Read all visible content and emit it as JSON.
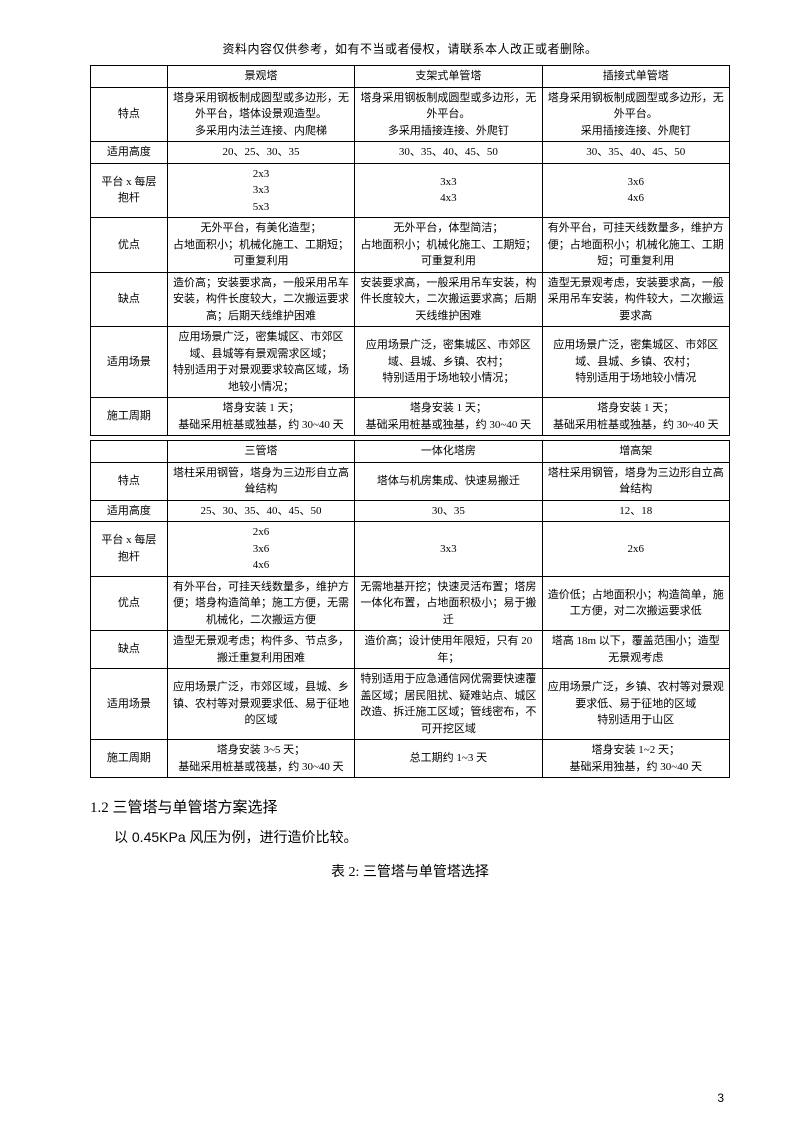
{
  "disclaimer": "资料内容仅供参考，如有不当或者侵权，请联系本人改正或者删除。",
  "tableA": {
    "headers": [
      "",
      "景观塔",
      "支架式单管塔",
      "插接式单管塔"
    ],
    "rows": {
      "特点": {
        "a": [
          "塔身采用钢板制成圆型或多边形，无外平台，塔体设景观造型。",
          "多采用内法兰连接、内爬梯"
        ],
        "b": [
          "塔身采用钢板制成圆型或多边形，无外平台。",
          "多采用插接连接、外爬钉"
        ],
        "c": [
          "塔身采用钢板制成圆型或多边形，无外平台。",
          "采用插接连接、外爬钉"
        ]
      },
      "适用高度": {
        "a": "20、25、30、35",
        "b": "30、35、40、45、50",
        "c": "30、35、40、45、50"
      },
      "平台x每层抱杆": {
        "label": [
          "平台 x 每层",
          "抱杆"
        ],
        "a": [
          "2x3",
          "3x3",
          "5x3"
        ],
        "b": [
          "3x3",
          "4x3"
        ],
        "c": [
          "3x6",
          "4x6"
        ]
      },
      "优点": {
        "a": [
          "无外平台，有美化造型；",
          "占地面积小；机械化施工、工期短；",
          "可重复利用"
        ],
        "b": [
          "无外平台，体型简洁；",
          "占地面积小；机械化施工、工期短；",
          "可重复利用"
        ],
        "c": [
          "有外平台，可挂天线数量多，维护方便；占地面积小；机械化施工、工期短；可重复利用"
        ]
      },
      "缺点": {
        "a": [
          "造价高；安装要求高，一般采用吊车安装，构件长度较大，二次搬运要求高；后期天线维护困难"
        ],
        "b": [
          "安装要求高，一般采用吊车安装，构件长度较大，二次搬运要求高；后期天线维护困难"
        ],
        "c": [
          "造型无景观考虑，安装要求高，一般采用吊车安装，构件较大，二次搬运要求高"
        ]
      },
      "适用场景": {
        "a": [
          "应用场景广泛，密集城区、市郊区域、县城等有景观需求区域；",
          "特别适用于对景观要求较高区域，场地较小情况；"
        ],
        "b": [
          "应用场景广泛，密集城区、市郊区域、县城、乡镇、农村；",
          "特别适用于场地较小情况；"
        ],
        "c": [
          "应用场景广泛，密集城区、市郊区域、县城、乡镇、农村；",
          "特别适用于场地较小情况"
        ]
      },
      "施工周期": {
        "a": [
          "塔身安装 1 天；",
          "基础采用桩基或独基，约 30~40 天"
        ],
        "b": [
          "塔身安装 1 天；",
          "基础采用桩基或独基，约 30~40 天"
        ],
        "c": [
          "塔身安装 1 天；",
          "基础采用桩基或独基，约 30~40 天"
        ]
      }
    }
  },
  "tableB": {
    "headers": [
      "",
      "三管塔",
      "一体化塔房",
      "增高架"
    ],
    "rows": {
      "特点": {
        "a": [
          "塔柱采用钢管，塔身为三边形自立高耸结构"
        ],
        "b": [
          "塔体与机房集成、快速易搬迁"
        ],
        "c": [
          "塔柱采用钢管，塔身为三边形自立高耸结构"
        ]
      },
      "适用高度": {
        "a": "25、30、35、40、45、50",
        "b": "30、35",
        "c": "12、18"
      },
      "平台x每层抱杆": {
        "label": [
          "平台 x 每层",
          "抱杆"
        ],
        "a": [
          "2x6",
          "3x6",
          "4x6"
        ],
        "b": [
          "3x3"
        ],
        "c": [
          "2x6"
        ]
      },
      "优点": {
        "a": [
          "有外平台，可挂天线数量多，维护方便；塔身构造简单；施工方便，无需机械化，二次搬运方便"
        ],
        "b": [
          "无需地基开挖；快速灵活布置；塔房一体化布置，占地面积极小；易于搬迁"
        ],
        "c": [
          "造价低；占地面积小；构造简单，施工方便，对二次搬运要求低"
        ]
      },
      "缺点": {
        "a": [
          "造型无景观考虑；构件多、节点多，搬迁重复利用困难"
        ],
        "b": [
          "造价高；设计使用年限短，只有 20 年；"
        ],
        "c": [
          "塔高 18m 以下，覆盖范围小；造型无景观考虑"
        ]
      },
      "适用场景": {
        "a": [
          "应用场景广泛，市郊区域，县城、乡镇、农村等对景观要求低、易于征地的区域"
        ],
        "b": [
          "特别适用于应急通信网优需要快速覆盖区域；居民阻扰、疑难站点、城区改造、拆迁施工区域；管线密布，不可开挖区域"
        ],
        "c": [
          "应用场景广泛，乡镇、农村等对景观要求低、易于征地的区域",
          "特别适用于山区"
        ]
      },
      "施工周期": {
        "a": [
          "塔身安装 3~5 天；",
          "基础采用桩基或筏基，约 30~40 天"
        ],
        "b": [
          "总工期约 1~3 天"
        ],
        "c": [
          "塔身安装 1~2 天；",
          "基础采用独基，约 30~40 天"
        ]
      }
    }
  },
  "rowLabels": {
    "特点": "特点",
    "适用高度": "适用高度",
    "优点": "优点",
    "缺点": "缺点",
    "适用场景": "适用场景",
    "施工周期": "施工周期"
  },
  "sectionHeading": "1.2 三管塔与单管塔方案选择",
  "bodyParagraph": "以 0.45KPa 风压为例，进行造价比较。",
  "tableCaption": "表 2: 三管塔与单管塔选择",
  "pageNumber": "3"
}
